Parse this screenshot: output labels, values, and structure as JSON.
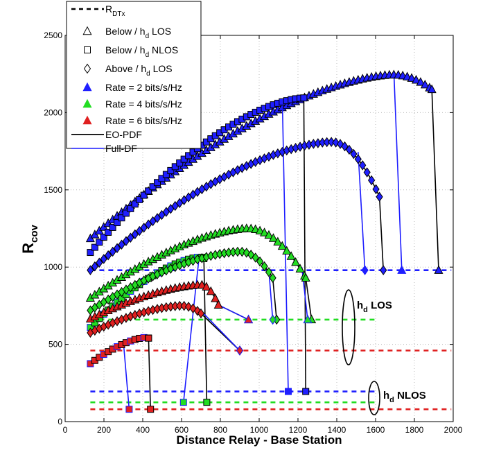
{
  "chart_data": {
    "type": "line",
    "xlabel": "Distance Relay - Base Station",
    "ylabel": "R",
    "ylabel_sub": "cov",
    "xlim": [
      0,
      2000
    ],
    "ylim": [
      0,
      2500
    ],
    "xticks": [
      0,
      200,
      400,
      600,
      800,
      1000,
      1200,
      1400,
      1600,
      1800,
      2000
    ],
    "yticks": [
      0,
      500,
      1000,
      1500,
      2000,
      2500
    ],
    "grid": true,
    "legend_position": "top-left",
    "colors": {
      "rate2": "#1f1fff",
      "rate4": "#22dd22",
      "rate6": "#e02020",
      "eo": "#000000",
      "full": "#1a1aff"
    },
    "legend": [
      {
        "kind": "dash",
        "label": "R",
        "sub": "DTx"
      },
      {
        "kind": "triangle",
        "label": "Below / h",
        "sub": "d",
        "suffix": " LOS"
      },
      {
        "kind": "square",
        "label": "Below / h",
        "sub": "d",
        "suffix": " NLOS"
      },
      {
        "kind": "diamond",
        "label": "Above / h",
        "sub": "d",
        "suffix": " LOS"
      },
      {
        "kind": "tri-blue",
        "label": "Rate = 2 bits/s/Hz"
      },
      {
        "kind": "tri-green",
        "label": "Rate = 4 bits/s/Hz"
      },
      {
        "kind": "tri-red",
        "label": "Rate = 6 bits/s/Hz"
      },
      {
        "kind": "line-black",
        "label": "EO-PDF"
      },
      {
        "kind": "line-blue",
        "label": "Full-DF"
      }
    ],
    "annotations": [
      {
        "label": "h",
        "sub": "d",
        "suffix": " LOS"
      },
      {
        "label": "h",
        "sub": "d",
        "suffix": " NLOS"
      }
    ],
    "reference_lines": [
      {
        "rate": 2,
        "value": 980,
        "x": [
          130,
          1990
        ]
      },
      {
        "rate": 4,
        "value": 660,
        "x": [
          130,
          1600
        ]
      },
      {
        "rate": 6,
        "value": 460,
        "x": [
          130,
          1990
        ]
      },
      {
        "rate": 2,
        "value": 195,
        "x": [
          130,
          1600
        ]
      },
      {
        "rate": 4,
        "value": 125,
        "x": [
          130,
          1600
        ]
      },
      {
        "rate": 6,
        "value": 80,
        "x": [
          130,
          1990
        ]
      }
    ],
    "series": [
      {
        "rate": 2,
        "marker": "triangle",
        "x_start": 130,
        "x_peak": 1690,
        "y_start": 1185,
        "y_peak": 2245,
        "x_end_eo": 1890,
        "y_end_eo": 2150,
        "x_end_full": 1695,
        "y_end_full": 2240,
        "drop_x_eo": 1925,
        "drop_x_full": 1735,
        "drop_y": 980
      },
      {
        "rate": 2,
        "marker": "square",
        "x_start": 130,
        "x_peak": 1230,
        "y_start": 1095,
        "y_peak": 2095,
        "x_end_eo": 1230,
        "y_end_eo": 2095,
        "x_end_full": 1120,
        "y_end_full": 2045,
        "drop_x_eo": 1240,
        "drop_x_full": 1150,
        "drop_y": 195
      },
      {
        "rate": 2,
        "marker": "diamond",
        "x_start": 130,
        "x_peak": 1370,
        "y_start": 980,
        "y_peak": 1810,
        "x_end_eo": 1620,
        "y_end_eo": 1455,
        "x_end_full": 1510,
        "y_end_full": 1745,
        "drop_x_eo": 1640,
        "drop_x_full": 1545,
        "drop_y": 980
      },
      {
        "rate": 4,
        "marker": "triangle",
        "x_start": 130,
        "x_peak": 940,
        "y_start": 800,
        "y_peak": 1250,
        "x_end_eo": 1240,
        "y_end_eo": 930,
        "x_end_full": 1220,
        "y_end_full": 1000,
        "drop_x_eo": 1270,
        "drop_x_full": 1250,
        "drop_y": 660
      },
      {
        "rate": 4,
        "marker": "square",
        "x_start": 130,
        "x_peak": 700,
        "y_start": 610,
        "y_peak": 1065,
        "x_end_eo": 715,
        "y_end_eo": 1055,
        "x_end_full": 690,
        "y_end_full": 1060,
        "drop_x_eo": 730,
        "drop_x_full": 610,
        "drop_y": 125
      },
      {
        "rate": 4,
        "marker": "diamond",
        "x_start": 130,
        "x_peak": 900,
        "y_start": 720,
        "y_peak": 1100,
        "x_end_eo": 1070,
        "y_end_eo": 930,
        "x_end_full": 1050,
        "y_end_full": 980,
        "drop_x_eo": 1090,
        "drop_x_full": 1070,
        "drop_y": 660
      },
      {
        "rate": 6,
        "marker": "triangle",
        "x_start": 130,
        "x_peak": 700,
        "y_start": 665,
        "y_peak": 885,
        "x_end_eo": 790,
        "y_end_eo": 755,
        "x_end_full": 790,
        "y_end_full": 755,
        "drop_x_eo": 945,
        "drop_x_full": 945,
        "drop_y": 660
      },
      {
        "rate": 6,
        "marker": "square",
        "x_start": 130,
        "x_peak": 420,
        "y_start": 375,
        "y_peak": 545,
        "x_end_eo": 430,
        "y_end_eo": 540,
        "x_end_full": 300,
        "y_end_full": 520,
        "drop_x_eo": 440,
        "drop_x_full": 330,
        "drop_y": 80
      },
      {
        "rate": 6,
        "marker": "diamond",
        "x_start": 130,
        "x_peak": 600,
        "y_start": 575,
        "y_peak": 750,
        "x_end_eo": 700,
        "y_end_eo": 700,
        "x_end_full": 690,
        "y_end_full": 730,
        "drop_x_eo": 900,
        "drop_x_full": 900,
        "drop_y": 460
      }
    ]
  }
}
